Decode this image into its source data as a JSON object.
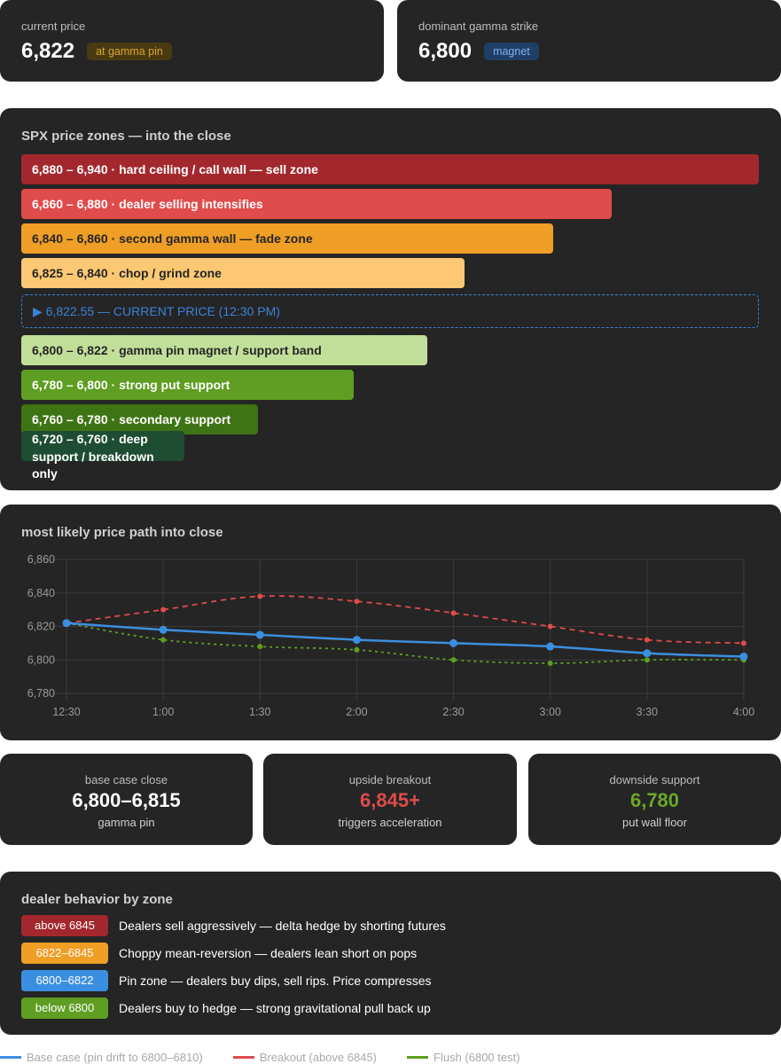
{
  "top": {
    "current": {
      "label": "current price",
      "value": "6,822",
      "badge": "at gamma pin"
    },
    "gamma": {
      "label": "dominant gamma strike",
      "value": "6,800",
      "badge": "magnet"
    }
  },
  "zones": {
    "title": "SPX price zones — into the close",
    "items": [
      {
        "text": "6,880 – 6,940  ·  hard ceiling / call wall — sell zone",
        "color": "#a3282d"
      },
      {
        "text": "6,860 – 6,880  ·  dealer selling intensifies",
        "color": "#e04b4b"
      },
      {
        "text": "6,840 – 6,860  ·  second gamma wall — fade zone",
        "color": "#ef9e26"
      },
      {
        "text": "6,825 – 6,840  ·  chop / grind zone",
        "color": "#fcc873"
      },
      {
        "text": "6,800 – 6,822  ·  gamma pin magnet / support band",
        "color": "#c2df9a"
      },
      {
        "text": "6,780 – 6,800  ·  strong put support",
        "color": "#5f9e22"
      },
      {
        "text": "6,760 – 6,780  ·  secondary support",
        "color": "#3f7414"
      },
      {
        "text": "6,720 – 6,760  ·  deep support / breakdown only",
        "color": "#1e4d34"
      }
    ],
    "current_label": "▶ 6,822.55 — CURRENT PRICE (12:30 PM)"
  },
  "path": {
    "title": "most likely price path into close"
  },
  "chart_data": {
    "type": "line",
    "title": "most likely price path into close",
    "x": [
      "12:30",
      "1:00",
      "1:30",
      "2:00",
      "2:30",
      "3:00",
      "3:30",
      "4:00"
    ],
    "yticks": [
      "6,860",
      "6,840",
      "6,820",
      "6,800",
      "6,780"
    ],
    "ylim": [
      6780,
      6860
    ],
    "series": [
      {
        "name": "Base case (pin drift to 6800–6810)",
        "color": "#3b8fe0",
        "values": [
          6822,
          6818,
          6815,
          6812,
          6810,
          6808,
          6804,
          6802
        ]
      },
      {
        "name": "Breakout (above 6845)",
        "color": "#e04b4b",
        "values": [
          6822,
          6830,
          6838,
          6835,
          6828,
          6820,
          6812,
          6810
        ]
      },
      {
        "name": "Flush (6800 test)",
        "color": "#5f9e22",
        "values": [
          6822,
          6812,
          6808,
          6806,
          6800,
          6798,
          6800,
          6800
        ]
      }
    ]
  },
  "stats": [
    {
      "label": "base case close",
      "value": "6,800–6,815",
      "sub": "gamma pin",
      "color": "#ffffff"
    },
    {
      "label": "upside breakout",
      "value": "6,845+",
      "sub": "triggers acceleration",
      "color": "#e04b4b"
    },
    {
      "label": "downside support",
      "value": "6,780",
      "sub": "put wall floor",
      "color": "#6aa82a"
    }
  ],
  "behavior": {
    "title": "dealer behavior by zone",
    "rows": [
      {
        "tag": "above 6845",
        "color": "#a3282d",
        "text": "Dealers sell aggressively — delta hedge by shorting futures"
      },
      {
        "tag": "6822–6845",
        "color": "#ef9e26",
        "text": "Choppy mean-reversion — dealers lean short on pops"
      },
      {
        "tag": "6800–6822",
        "color": "#3b8fe0",
        "text": "Pin zone — dealers buy dips, sell rips. Price compresses"
      },
      {
        "tag": "below 6800",
        "color": "#5f9e22",
        "text": "Dealers buy to hedge — strong gravitational pull back up"
      }
    ]
  }
}
